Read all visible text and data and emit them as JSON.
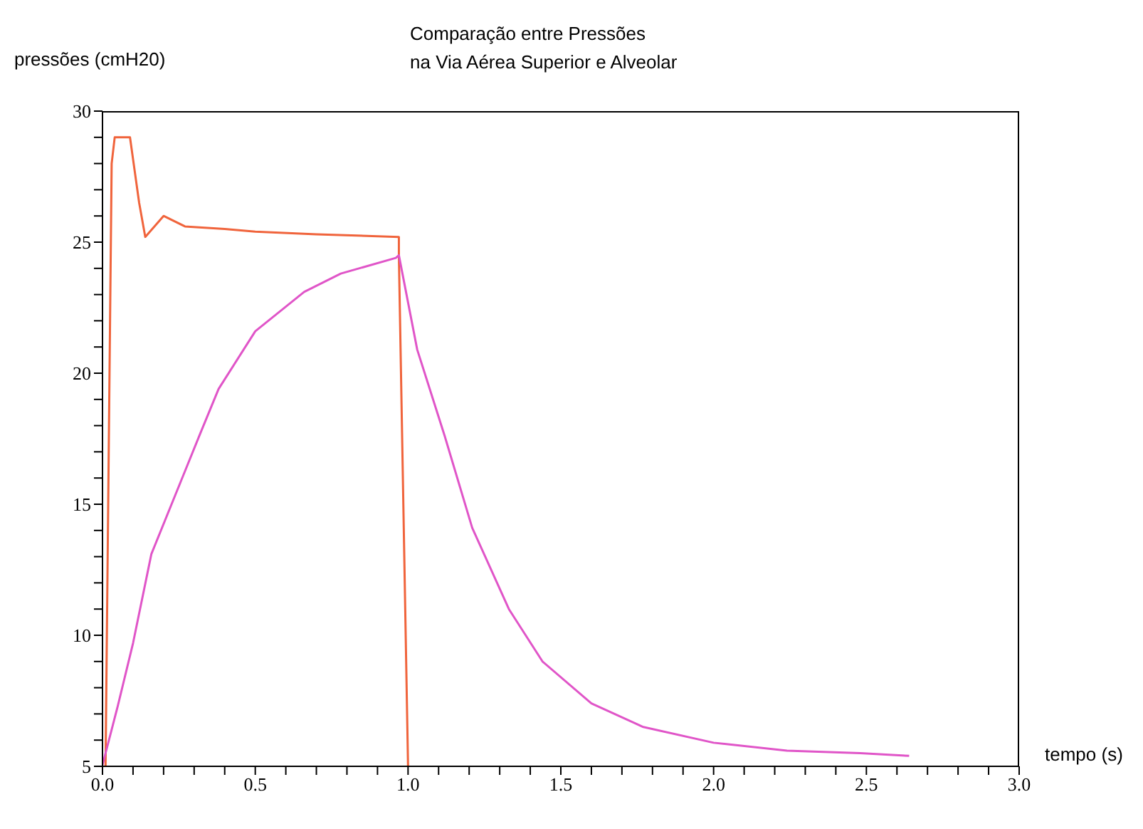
{
  "chart_data": {
    "type": "line",
    "title": "Comparação entre Pressões\nna Via Aérea Superior e Alveolar",
    "xlabel": "tempo (s)",
    "ylabel": "pressões (cmH20)",
    "marker": "none",
    "line_style": "solid",
    "xlim": [
      0,
      3
    ],
    "ylim": [
      5,
      30
    ],
    "xticks": [
      {
        "value": 0,
        "label": "0.0"
      },
      {
        "value": 0.1,
        "label": null
      },
      {
        "value": 0.2,
        "label": null
      },
      {
        "value": 0.3,
        "label": null
      },
      {
        "value": 0.4,
        "label": null
      },
      0.5,
      {
        "value": 0.6,
        "label": null
      },
      {
        "value": 0.7,
        "label": null
      },
      {
        "value": 0.8,
        "label": null
      },
      {
        "value": 0.9,
        "label": null
      },
      {
        "value": 1,
        "label": "1.0"
      },
      {
        "value": 1.1,
        "label": null
      },
      {
        "value": 1.2,
        "label": null
      },
      {
        "value": 1.3,
        "label": null
      },
      {
        "value": 1.4,
        "label": null
      },
      1.5,
      {
        "value": 1.6,
        "label": null
      },
      {
        "value": 1.7,
        "label": null
      },
      {
        "value": 1.8,
        "label": null
      },
      {
        "value": 1.9,
        "label": null
      },
      {
        "value": 2,
        "label": "2.0"
      },
      {
        "value": 2.1,
        "label": null
      },
      {
        "value": 2.2,
        "label": null
      },
      {
        "value": 2.3,
        "label": null
      },
      {
        "value": 2.4,
        "label": null
      },
      2.5,
      {
        "value": 2.6,
        "label": null
      },
      {
        "value": 2.7,
        "label": null
      },
      {
        "value": 2.8,
        "label": null
      },
      {
        "value": 2.9,
        "label": null
      },
      {
        "value": 3,
        "label": "3.0"
      }
    ],
    "yticks": [
      5,
      {
        "value": 6,
        "label": null
      },
      {
        "value": 7,
        "label": null
      },
      {
        "value": 8,
        "label": null
      },
      {
        "value": 9,
        "label": null
      },
      10,
      {
        "value": 11,
        "label": null
      },
      {
        "value": 12,
        "label": null
      },
      {
        "value": 13,
        "label": null
      },
      {
        "value": 14,
        "label": null
      },
      15,
      {
        "value": 16,
        "label": null
      },
      {
        "value": 17,
        "label": null
      },
      {
        "value": 18,
        "label": null
      },
      {
        "value": 19,
        "label": null
      },
      20,
      {
        "value": 21,
        "label": null
      },
      {
        "value": 22,
        "label": null
      },
      {
        "value": 23,
        "label": null
      },
      {
        "value": 24,
        "label": null
      },
      25,
      {
        "value": 26,
        "label": null
      },
      {
        "value": 27,
        "label": null
      },
      {
        "value": 28,
        "label": null
      },
      {
        "value": 29,
        "label": null
      },
      30
    ],
    "series": [
      {
        "color": "#f0643c",
        "x": [
          0.01,
          0.03,
          0.04,
          0.09,
          0.12,
          0.14,
          0.2,
          0.27,
          0.4,
          0.5,
          0.7,
          0.97,
          0.97,
          1.0
        ],
        "values": [
          5,
          28,
          29,
          29,
          26.5,
          25.2,
          26,
          25.6,
          25.5,
          25.4,
          25.3,
          25.2,
          24.5,
          5
        ]
      },
      {
        "color": "#e055c8",
        "x": [
          0,
          0.05,
          0.1,
          0.16,
          0.24,
          0.32,
          0.38,
          0.5,
          0.66,
          0.78,
          0.96,
          0.97,
          1.03,
          1.12,
          1.21,
          1.33,
          1.44,
          1.6,
          1.77,
          2.0,
          2.24,
          2.48,
          2.64
        ],
        "values": [
          5.05,
          7.3,
          9.7,
          13.1,
          15.4,
          17.7,
          19.4,
          21.6,
          23.1,
          23.8,
          24.4,
          24.5,
          20.9,
          17.6,
          14.1,
          11,
          9,
          7.4,
          6.5,
          5.9,
          5.6,
          5.5,
          5.4
        ]
      }
    ]
  }
}
